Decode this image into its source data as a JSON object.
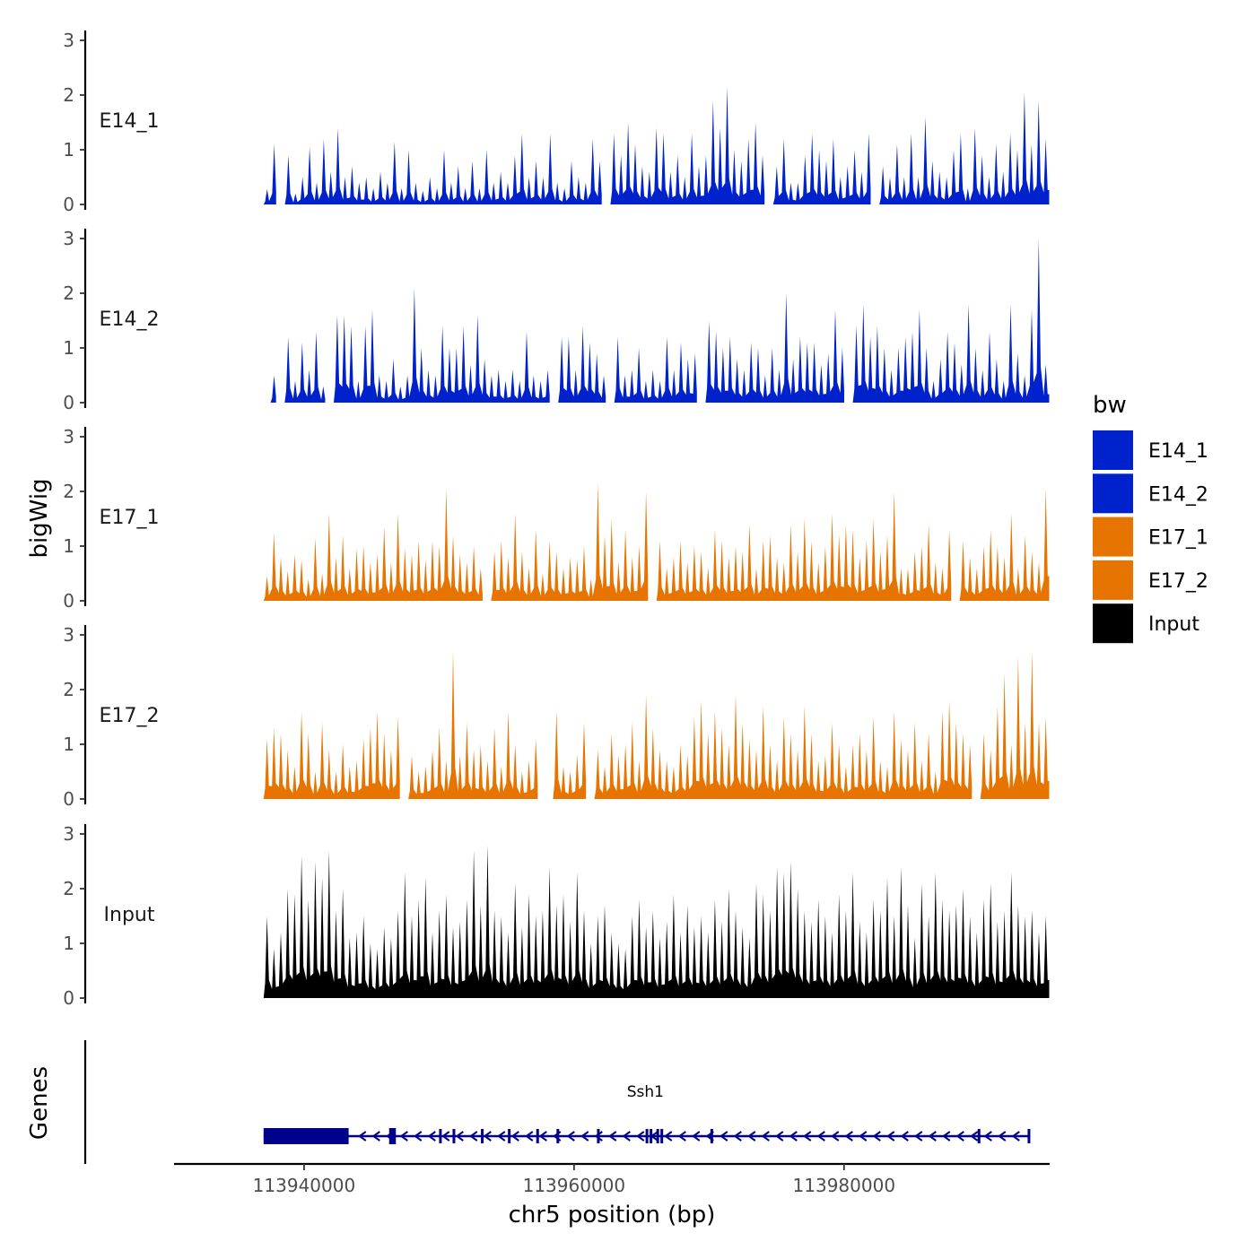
{
  "chart_data": {
    "type": "area",
    "title": "",
    "ylabel": "bigWig",
    "genes_label": "Genes",
    "xlabel": "chr5 position (bp)",
    "x_range": [
      113930500,
      113995100
    ],
    "data_x_range": [
      113937000,
      113995200
    ],
    "ylim": [
      0,
      3.2
    ],
    "y_ticks": [
      "0",
      "1",
      "2",
      "3"
    ],
    "x_ticks": [
      {
        "value": 113940000,
        "label": "113940000"
      },
      {
        "value": 113960000,
        "label": "113960000"
      },
      {
        "value": 113980000,
        "label": "113980000"
      }
    ],
    "legend": {
      "title": "bw",
      "position": "right",
      "entries": [
        {
          "name": "E14_1",
          "color": "#0022CC"
        },
        {
          "name": "E14_2",
          "color": "#0022CC"
        },
        {
          "name": "E17_1",
          "color": "#E87400"
        },
        {
          "name": "E17_2",
          "color": "#E87400"
        },
        {
          "name": "Input",
          "color": "#000000"
        }
      ]
    },
    "series": [
      {
        "name": "E14_1",
        "color": "#0022CC",
        "peaks": [
          0.28,
          1.1,
          0.2,
          0.9,
          0.2,
          0.5,
          1.05,
          0.4,
          1.2,
          0.6,
          1.4,
          0.5,
          0.7,
          0.4,
          0.5,
          0.3,
          0.6,
          0.4,
          1.15,
          0.3,
          1.0,
          0.4,
          0.25,
          0.5,
          0.3,
          1.0,
          0.4,
          0.7,
          0.3,
          0.8,
          0.3,
          1.0,
          0.4,
          0.6,
          0.4,
          0.9,
          1.3,
          0.5,
          0.8,
          0.5,
          1.3,
          0.4,
          0.3,
          0.8,
          0.5,
          0.4,
          1.2,
          0.8,
          0.6,
          1.3,
          0.9,
          1.5,
          1.1,
          0.7,
          0.6,
          1.4,
          1.3,
          0.6,
          0.9,
          0.5,
          1.3,
          0.7,
          0.9,
          1.9,
          1.4,
          2.15,
          1.0,
          0.8,
          1.2,
          1.5,
          0.9,
          1.4,
          0.7,
          1.2,
          0.4,
          0.4,
          0.9,
          1.3,
          1.0,
          0.8,
          1.2,
          0.5,
          0.7,
          1.0,
          0.6,
          1.3,
          0.4,
          0.7,
          0.5,
          1.1,
          0.5,
          1.3,
          0.5,
          1.6,
          0.8,
          0.6,
          0.5,
          1.0,
          1.3,
          0.3,
          1.4,
          0.9,
          0.5,
          1.1,
          0.6,
          1.3,
          1.0,
          2.05,
          1.1,
          1.9,
          1.2
        ],
        "gaps": [
          [
            113937800,
            113938700
          ],
          [
            113962100,
            113962600
          ],
          [
            113974400,
            113974800
          ],
          [
            113979800,
            113980200
          ],
          [
            113982100,
            113982500
          ]
        ]
      },
      {
        "name": "E14_2",
        "color": "#0022CC",
        "peaks": [
          0.6,
          0.5,
          0.3,
          1.2,
          0.4,
          1.1,
          0.6,
          1.3,
          0.3,
          1.7,
          1.6,
          1.6,
          1.4,
          0.4,
          1.4,
          1.7,
          0.5,
          0.4,
          0.8,
          0.3,
          0.5,
          2.1,
          1.0,
          0.6,
          0.5,
          1.4,
          1.0,
          1.0,
          1.4,
          0.7,
          1.6,
          0.8,
          0.5,
          0.6,
          0.4,
          0.6,
          0.4,
          1.3,
          0.5,
          0.4,
          0.6,
          0.7,
          1.2,
          1.2,
          0.6,
          1.4,
          1.1,
          0.9,
          0.5,
          1.6,
          1.2,
          0.5,
          0.6,
          1.0,
          0.4,
          0.6,
          0.4,
          1.2,
          0.6,
          1.1,
          0.8,
          0.9,
          1.6,
          1.5,
          1.3,
          1.0,
          1.2,
          0.8,
          0.6,
          1.1,
          1.0,
          0.5,
          1.0,
          0.6,
          2.0,
          0.8,
          1.2,
          1.1,
          1.1,
          0.7,
          0.9,
          1.7,
          1.0,
          0.6,
          1.4,
          1.8,
          1.2,
          1.4,
          1.0,
          0.6,
          1.0,
          1.2,
          1.3,
          1.7,
          1.0,
          0.4,
          0.8,
          1.3,
          1.1,
          0.7,
          1.8,
          1.0,
          0.6,
          1.3,
          0.8,
          0.4,
          1.8,
          0.9,
          0.5,
          1.7,
          3.0,
          0.7
        ],
        "gaps": [
          [
            113937000,
            113937600
          ],
          [
            113938200,
            113938700
          ],
          [
            113941800,
            113942200
          ],
          [
            113948200,
            113948600
          ],
          [
            113958500,
            113958900
          ],
          [
            113962600,
            113963200
          ],
          [
            113969300,
            113969800
          ],
          [
            113980200,
            113980600
          ]
        ]
      },
      {
        "name": "E17_1",
        "color": "#E87400",
        "peaks": [
          0.45,
          1.25,
          0.8,
          0.55,
          0.85,
          0.75,
          0.4,
          1.15,
          0.5,
          1.6,
          0.8,
          1.2,
          0.6,
          0.95,
          1.0,
          0.7,
          0.85,
          1.35,
          0.7,
          1.6,
          0.95,
          0.85,
          1.1,
          0.75,
          1.1,
          1.0,
          2.05,
          1.2,
          0.85,
          0.7,
          1.0,
          0.6,
          1.4,
          0.9,
          1.1,
          0.8,
          1.6,
          0.9,
          0.6,
          1.3,
          0.5,
          1.1,
          0.9,
          0.6,
          0.8,
          0.75,
          1.0,
          0.4,
          2.15,
          1.2,
          1.5,
          0.7,
          1.3,
          0.8,
          1.0,
          2.0,
          0.9,
          1.1,
          0.6,
          0.8,
          1.1,
          0.7,
          1.0,
          0.9,
          0.6,
          1.3,
          1.1,
          0.8,
          1.0,
          0.9,
          1.4,
          0.6,
          1.1,
          1.2,
          0.8,
          0.7,
          1.4,
          0.9,
          1.5,
          1.1,
          0.7,
          1.0,
          1.6,
          1.2,
          1.4,
          1.3,
          0.8,
          1.1,
          1.5,
          0.9,
          1.2,
          2.0,
          0.6,
          0.6,
          0.9,
          1.0,
          1.4,
          0.7,
          0.6,
          1.3,
          0.9,
          1.1,
          0.8,
          0.6,
          1.0,
          1.3,
          1.0,
          0.8,
          1.6,
          0.6,
          1.2,
          0.9,
          0.7,
          2.05
        ],
        "gaps": [
          [
            113953400,
            113953700
          ],
          [
            113965600,
            113965900
          ],
          [
            113975200,
            113975500
          ],
          [
            113988200,
            113988500
          ]
        ]
      },
      {
        "name": "E17_2",
        "color": "#E87400",
        "peaks": [
          1.1,
          1.3,
          1.2,
          0.9,
          0.6,
          1.6,
          1.2,
          0.5,
          1.4,
          0.9,
          0.5,
          1.0,
          0.6,
          0.7,
          1.1,
          1.3,
          1.6,
          1.2,
          0.9,
          1.5,
          0.7,
          0.8,
          0.5,
          0.6,
          0.9,
          1.3,
          0.7,
          2.7,
          0.8,
          1.4,
          0.9,
          1.0,
          0.7,
          1.3,
          0.6,
          1.6,
          1.0,
          0.5,
          0.7,
          1.1,
          1.7,
          1.0,
          1.6,
          0.6,
          0.5,
          0.8,
          1.4,
          1.0,
          0.9,
          0.6,
          1.2,
          0.8,
          1.0,
          1.4,
          0.7,
          1.9,
          1.3,
          0.9,
          0.7,
          0.6,
          1.0,
          0.8,
          1.5,
          1.8,
          1.2,
          1.6,
          1.3,
          1.0,
          1.9,
          1.4,
          1.1,
          0.9,
          1.7,
          1.0,
          0.7,
          1.5,
          1.2,
          0.9,
          1.7,
          1.2,
          0.7,
          0.8,
          1.4,
          1.0,
          0.6,
          1.0,
          1.2,
          0.9,
          1.5,
          0.7,
          0.6,
          1.6,
          1.1,
          0.9,
          1.4,
          0.7,
          1.2,
          0.5,
          1.6,
          1.8,
          1.4,
          1.2,
          1.0,
          1.9,
          1.2,
          0.9,
          1.7,
          2.3,
          1.0,
          2.6,
          1.4,
          2.7,
          1.4,
          1.5
        ],
        "gaps": [
          [
            113947000,
            113947500
          ],
          [
            113957600,
            113958200
          ],
          [
            113961100,
            113961400
          ],
          [
            113989500,
            113990300
          ]
        ]
      },
      {
        "name": "Input",
        "color": "#000000",
        "peaks": [
          1.5,
          0.9,
          1.2,
          2.0,
          1.9,
          2.6,
          1.8,
          2.5,
          2.2,
          2.7,
          1.6,
          2.0,
          1.1,
          1.2,
          1.5,
          1.0,
          0.9,
          1.3,
          1.1,
          1.6,
          2.3,
          1.5,
          1.8,
          2.2,
          1.2,
          1.6,
          1.9,
          1.3,
          1.4,
          1.8,
          2.7,
          1.7,
          2.8,
          1.6,
          1.5,
          1.2,
          2.1,
          1.3,
          1.9,
          1.5,
          1.6,
          2.4,
          1.7,
          1.9,
          1.4,
          2.3,
          1.6,
          1.0,
          1.5,
          1.7,
          1.2,
          1.0,
          0.9,
          1.5,
          1.8,
          1.3,
          1.6,
          1.1,
          1.4,
          1.9,
          1.2,
          1.7,
          1.3,
          1.5,
          1.2,
          1.8,
          1.4,
          2.0,
          1.6,
          1.3,
          1.1,
          2.1,
          1.9,
          1.6,
          2.4,
          2.3,
          2.5,
          2.0,
          1.6,
          1.4,
          1.8,
          1.5,
          1.2,
          1.9,
          1.6,
          2.3,
          1.4,
          1.2,
          1.8,
          1.6,
          2.2,
          1.5,
          2.4,
          1.7,
          1.1,
          2.1,
          1.5,
          2.3,
          1.8,
          1.6,
          1.7,
          2.0,
          1.5,
          1.2,
          1.8,
          2.1,
          1.4,
          1.6,
          2.3,
          1.7,
          1.5,
          1.6,
          1.2,
          1.5
        ],
        "gaps": []
      }
    ],
    "genes": [
      {
        "name": "Ssh1",
        "strand": "-",
        "start": 113937000,
        "end": 113993700,
        "utr_blocks": [
          [
            113937000,
            113943300
          ],
          [
            113946300,
            113946800
          ]
        ],
        "exons": [
          113946500,
          113950100,
          113951100,
          113953200,
          113955200,
          113957300,
          113958800,
          113961800,
          113965400,
          113965700,
          113966200,
          113966500,
          113970200,
          113990000,
          113993700
        ]
      }
    ]
  }
}
